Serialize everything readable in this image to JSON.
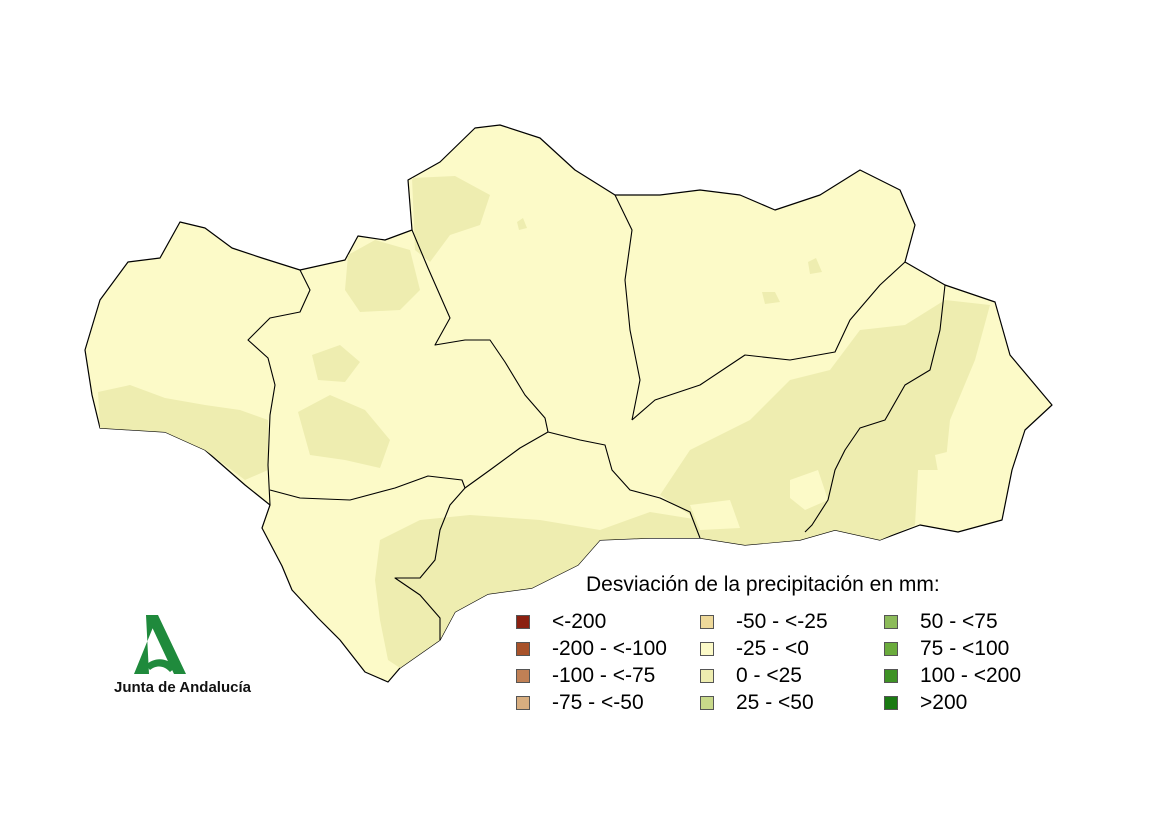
{
  "legend": {
    "title": "Desviación de la precipitación en mm:",
    "items": [
      {
        "label": "<-200",
        "color": "#8B2010"
      },
      {
        "label": "-200 - <-100",
        "color": "#A8522A"
      },
      {
        "label": "-100 - <-75",
        "color": "#C08055"
      },
      {
        "label": "-75 - <-50",
        "color": "#D8AE80"
      },
      {
        "label": "-50 - <-25",
        "color": "#EED99A"
      },
      {
        "label": "-25 - <0",
        "color": "#FCFAC8"
      },
      {
        "label": "0 - <25",
        "color": "#EEEDB0"
      },
      {
        "label": "25 - <50",
        "color": "#C8D98A"
      },
      {
        "label": "50 - <75",
        "color": "#8CBB5A"
      },
      {
        "label": "75 - <100",
        "color": "#6AAB3C"
      },
      {
        "label": "100 - <200",
        "color": "#3E9225"
      },
      {
        "label": ">200",
        "color": "#1A7A12"
      }
    ]
  },
  "logo": {
    "text": "Junta de Andalucía",
    "color": "#1F8A3C"
  }
}
